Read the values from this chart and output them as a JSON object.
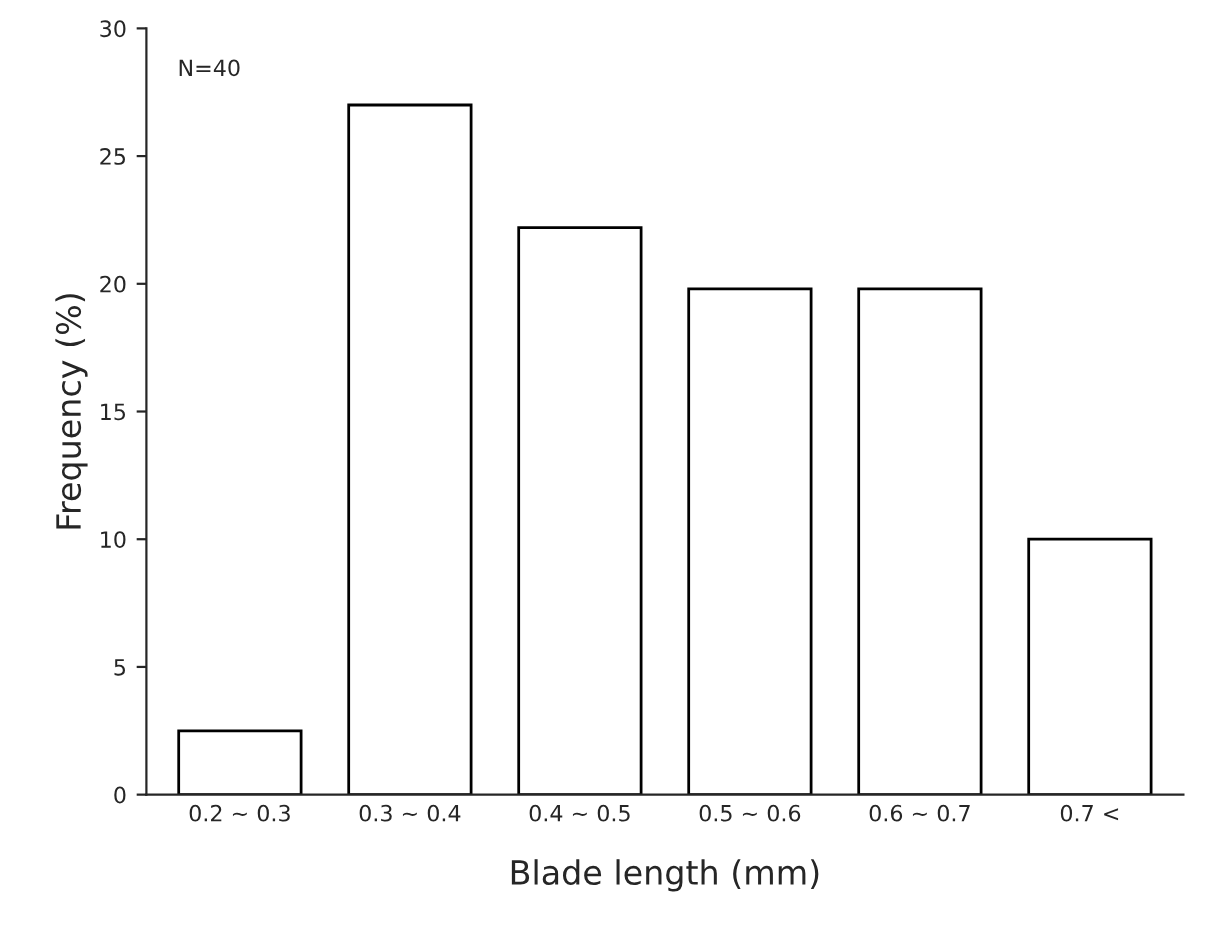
{
  "chart_data": {
    "type": "bar",
    "xlabel": "Blade length (mm)",
    "ylabel": "Frequency (%)",
    "categories": [
      "0.2 ~ 0.3",
      "0.3 ~ 0.4",
      "0.4 ~ 0.5",
      "0.5 ~ 0.6",
      "0.6 ~ 0.7",
      "0.7 <"
    ],
    "values": [
      2.5,
      27,
      22.2,
      19.8,
      19.8,
      10
    ],
    "color": "#ffffff",
    "ylim": [
      0,
      30
    ],
    "yticks": [
      0,
      5,
      10,
      15,
      20,
      25,
      30
    ],
    "grid": false,
    "annotations": [
      "N=40"
    ]
  }
}
